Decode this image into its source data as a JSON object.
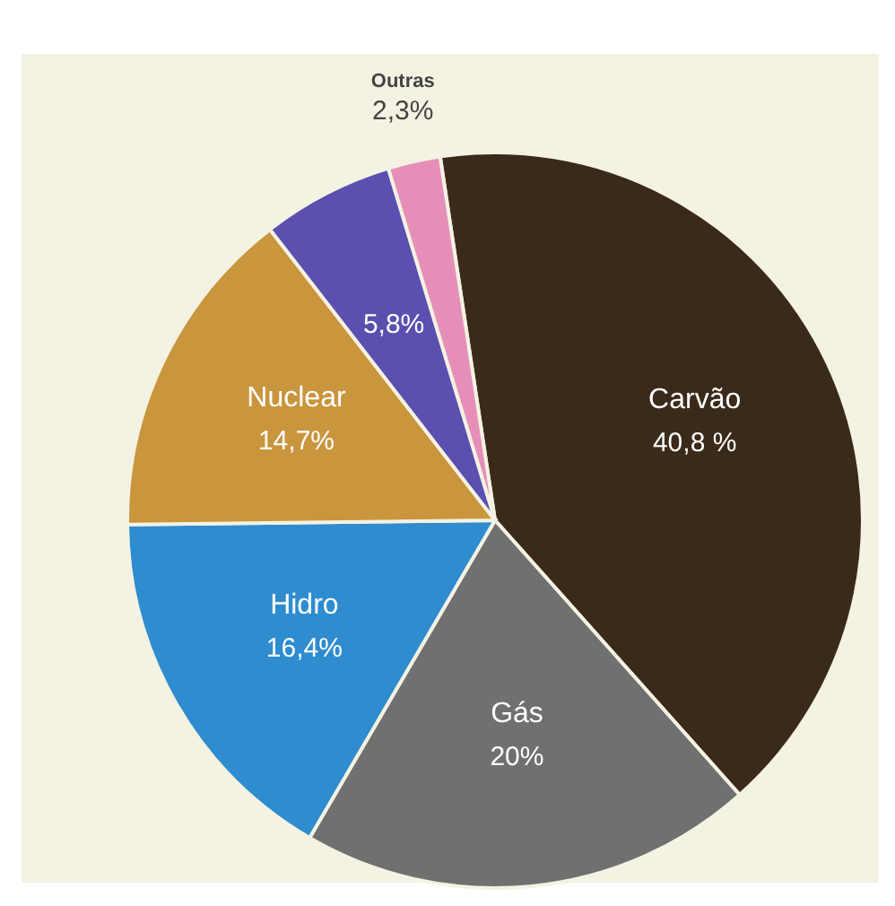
{
  "chart_data": {
    "type": "pie",
    "categories": [
      "Carvão",
      "Gás",
      "Hidro",
      "Nuclear",
      null,
      "Outras"
    ],
    "values": [
      40.8,
      20,
      16.4,
      14.7,
      5.8,
      2.3
    ],
    "colors": [
      "#3b2a1a",
      "#707070",
      "#2e8ccf",
      "#c9953d",
      "#5b4fb0",
      "#e58fb8"
    ],
    "value_labels": [
      "40,8 %",
      "20%",
      "16,4%",
      "14,7%",
      "5,8%",
      "2,3%"
    ]
  }
}
